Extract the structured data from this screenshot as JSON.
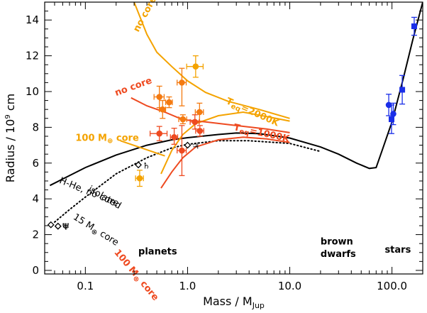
{
  "chart_data": {
    "type": "scatter",
    "xlabel": "Mass / M",
    "xlabel_sub": "Jup",
    "ylabel": "Radius / 10",
    "ylabel_sup": "9",
    "ylabel_suffix": " cm",
    "xscale": "log",
    "xlim": [
      0.04,
      200
    ],
    "ylim": [
      -0.2,
      15
    ],
    "x_ticks": [
      {
        "value": 0.1,
        "label": "0.1"
      },
      {
        "value": 1,
        "label": "1.0"
      },
      {
        "value": 10,
        "label": "10.0"
      },
      {
        "value": 100,
        "label": "100.0"
      }
    ],
    "y_ticks": [
      {
        "value": 0,
        "label": "0"
      },
      {
        "value": 2,
        "label": "2"
      },
      {
        "value": 4,
        "label": "4"
      },
      {
        "value": 6,
        "label": "6"
      },
      {
        "value": 8,
        "label": "8"
      },
      {
        "value": 10,
        "label": "10"
      },
      {
        "value": 12,
        "label": "12"
      },
      {
        "value": 14,
        "label": "14"
      }
    ],
    "colors": {
      "black": "#000000",
      "orange": "#f4a300",
      "red": "#ee4a20",
      "midorange": "#f47a10",
      "blue": "#1a2ee8"
    },
    "curves": [
      {
        "name": "hhe-no-core",
        "color": "#000000",
        "dash": false,
        "points": [
          [
            0.045,
            4.75
          ],
          [
            0.07,
            5.3
          ],
          [
            0.1,
            5.75
          ],
          [
            0.2,
            6.45
          ],
          [
            0.4,
            7.0
          ],
          [
            0.7,
            7.3
          ],
          [
            1.0,
            7.42
          ],
          [
            2.0,
            7.6
          ],
          [
            3.0,
            7.68
          ],
          [
            5.0,
            7.65
          ],
          [
            10.0,
            7.4
          ],
          [
            20.0,
            6.9
          ],
          [
            30.0,
            6.5
          ],
          [
            45.0,
            6.0
          ],
          [
            60.0,
            5.7
          ],
          [
            70.0,
            5.75
          ],
          [
            80.0,
            6.7
          ],
          [
            100.0,
            8.3
          ],
          [
            130.0,
            10.8
          ],
          [
            160.0,
            12.9
          ],
          [
            200.0,
            15.0
          ]
        ]
      },
      {
        "name": "isolated-15-core",
        "color": "#000000",
        "dash": true,
        "points": [
          [
            0.05,
            2.7
          ],
          [
            0.07,
            3.4
          ],
          [
            0.1,
            4.1
          ],
          [
            0.2,
            5.4
          ],
          [
            0.4,
            6.3
          ],
          [
            0.7,
            6.85
          ],
          [
            1.0,
            7.05
          ],
          [
            2.0,
            7.25
          ],
          [
            4.0,
            7.25
          ],
          [
            10.0,
            7.1
          ],
          [
            20.0,
            6.65
          ]
        ]
      },
      {
        "name": "no-core-2000K",
        "color": "#f4a300",
        "dash": false,
        "points": [
          [
            0.3,
            15.0
          ],
          [
            0.4,
            13.2
          ],
          [
            0.5,
            12.2
          ],
          [
            0.7,
            11.4
          ],
          [
            1.0,
            10.6
          ],
          [
            1.5,
            9.95
          ],
          [
            2.5,
            9.45
          ],
          [
            5.0,
            9.0
          ],
          [
            10.0,
            8.5
          ]
        ]
      },
      {
        "name": "100-core-2000K",
        "color": "#f4a300",
        "dash": false,
        "points": [
          [
            0.55,
            5.4
          ],
          [
            0.7,
            6.7
          ],
          [
            0.9,
            7.6
          ],
          [
            1.2,
            8.2
          ],
          [
            2.0,
            8.65
          ],
          [
            3.5,
            8.85
          ],
          [
            6.0,
            8.6
          ],
          [
            10.0,
            8.35
          ]
        ]
      },
      {
        "name": "100-core-label-line",
        "color": "#f4a300",
        "dash": false,
        "points": [
          [
            0.22,
            7.25
          ],
          [
            0.6,
            6.4
          ]
        ]
      },
      {
        "name": "no-core-1000K",
        "color": "#ee4a20",
        "dash": false,
        "points": [
          [
            0.28,
            9.65
          ],
          [
            0.4,
            9.2
          ],
          [
            0.6,
            8.85
          ],
          [
            0.8,
            8.55
          ],
          [
            1.0,
            8.4
          ],
          [
            1.5,
            8.3
          ],
          [
            3.0,
            8.1
          ],
          [
            6.0,
            7.9
          ],
          [
            10.0,
            7.7
          ]
        ]
      },
      {
        "name": "100-core-1000K",
        "color": "#ee4a20",
        "dash": false,
        "points": [
          [
            0.55,
            4.6
          ],
          [
            0.7,
            5.5
          ],
          [
            0.9,
            6.3
          ],
          [
            1.2,
            6.9
          ],
          [
            2.0,
            7.3
          ],
          [
            3.5,
            7.45
          ],
          [
            6.0,
            7.35
          ],
          [
            10.0,
            7.15
          ]
        ]
      }
    ],
    "orange_points": [
      {
        "x": 1.2,
        "y": 11.4,
        "xerr": [
          0.22,
          0.22
        ],
        "yerr": [
          0.6,
          0.6
        ],
        "color": "#f4a300"
      },
      {
        "x": 0.34,
        "y": 5.15,
        "xerr": [
          0.03,
          0.03
        ],
        "yerr": [
          0.45,
          0.45
        ],
        "color": "#f4a300"
      },
      {
        "x": 0.88,
        "y": 10.5,
        "xerr": [
          0.09,
          0.09
        ],
        "yerr": [
          1.3,
          0.8
        ],
        "color": "#f47a10"
      },
      {
        "x": 0.53,
        "y": 9.7,
        "xerr": [
          0.06,
          0.06
        ],
        "yerr": [
          0.6,
          0.6
        ],
        "color": "#f47a10"
      },
      {
        "x": 0.66,
        "y": 9.4,
        "xerr": [
          0.05,
          0.05
        ],
        "yerr": [
          0.3,
          0.3
        ],
        "color": "#f47a10"
      },
      {
        "x": 0.57,
        "y": 9.0,
        "xerr": [
          0.04,
          0.04
        ],
        "yerr": [
          0.5,
          0.5
        ],
        "color": "#f47a10"
      },
      {
        "x": 1.31,
        "y": 8.85,
        "xerr": [
          0.12,
          0.12
        ],
        "yerr": [
          0.5,
          0.5
        ],
        "color": "#f47a10"
      },
      {
        "x": 0.9,
        "y": 8.45,
        "xerr": [
          0.08,
          0.08
        ],
        "yerr": [
          0.25,
          0.25
        ],
        "color": "#f47a10"
      },
      {
        "x": 1.18,
        "y": 8.3,
        "xerr": [
          0.12,
          0.12
        ],
        "yerr": [
          0.4,
          0.4
        ],
        "color": "#ee4a20"
      },
      {
        "x": 0.53,
        "y": 7.65,
        "xerr": [
          0.1,
          0.1
        ],
        "yerr": [
          0.4,
          0.4
        ],
        "color": "#ee4a20"
      },
      {
        "x": 0.74,
        "y": 7.45,
        "xerr": [
          0.06,
          0.06
        ],
        "yerr": [
          0.4,
          0.5
        ],
        "color": "#ee4a20"
      },
      {
        "x": 1.32,
        "y": 7.8,
        "xerr": [
          0.12,
          0.12
        ],
        "yerr": [
          0.3,
          0.3
        ],
        "color": "#ee4a20"
      },
      {
        "x": 0.88,
        "y": 6.7,
        "xerr": [
          0.09,
          0.09
        ],
        "yerr": [
          1.4,
          1.4
        ],
        "color": "#ee4a20"
      }
    ],
    "blue_points": [
      {
        "x": 165,
        "y": 13.65,
        "xerr": [
          6,
          6
        ],
        "yerr": [
          0.5,
          0.5
        ],
        "marker": "square"
      },
      {
        "x": 126,
        "y": 10.1,
        "xerr": [
          3,
          3
        ],
        "yerr": [
          0.8,
          0.8
        ],
        "marker": "square"
      },
      {
        "x": 93,
        "y": 9.25,
        "xerr": [
          2,
          2
        ],
        "yerr": [
          0.6,
          0.6
        ],
        "marker": "circle"
      },
      {
        "x": 103,
        "y": 8.75,
        "xerr": [
          2,
          2
        ],
        "yerr": [
          0.6,
          0.6
        ],
        "marker": "circle"
      },
      {
        "x": 99,
        "y": 8.45,
        "xerr": [
          2,
          2
        ],
        "yerr": [
          0.8,
          0.8
        ],
        "marker": "square"
      }
    ],
    "solar_system": [
      {
        "x": 0.046,
        "y": 2.55,
        "symbol": ""
      },
      {
        "x": 0.054,
        "y": 2.47,
        "symbol": "♅"
      },
      {
        "x": 0.054,
        "y": 2.47,
        "symbol": "Ψ"
      },
      {
        "x": 0.33,
        "y": 5.9,
        "symbol": "♄"
      },
      {
        "x": 1.0,
        "y": 7.0,
        "symbol": "♃"
      }
    ],
    "curve_labels": [
      {
        "text": "no core",
        "x": 0.33,
        "y": 13.3,
        "color": "#f4a300",
        "rotate": 62,
        "bold": true
      },
      {
        "text": "no core",
        "x": 0.2,
        "y": 9.75,
        "color": "#ee4a20",
        "rotate": 20,
        "bold": true
      },
      {
        "text": "T",
        "sub": "eq",
        "suffix": "=2000K",
        "x": 2.35,
        "y": 9.35,
        "color": "#f4a300",
        "rotate": -24,
        "bold": true
      },
      {
        "text": "T",
        "sub": "eq",
        "suffix": "=1000K",
        "x": 2.8,
        "y": 7.85,
        "color": "#ee4a20",
        "rotate": -12,
        "bold": true
      },
      {
        "text": "100 M",
        "sub": "⊕",
        "suffix": " core",
        "x": 0.08,
        "y": 7.25,
        "color": "#f4a300",
        "rotate": 0,
        "bold": true
      },
      {
        "text": "100 M",
        "sub": "⊕",
        "suffix": " core",
        "x": 0.19,
        "y": 1.0,
        "color": "#ee4a20",
        "rotate": -50,
        "bold": true
      },
      {
        "text": "H-He, no core",
        "x": 0.055,
        "y": 4.9,
        "color": "#000000",
        "rotate": -22,
        "bold": false
      },
      {
        "text": "isolated",
        "x": 0.105,
        "y": 4.45,
        "color": "#000000",
        "rotate": -30,
        "bold": false
      },
      {
        "text": "15 M",
        "sub": "⊕",
        "suffix": " core",
        "x": 0.075,
        "y": 2.9,
        "color": "#000000",
        "rotate": -32,
        "bold": false
      }
    ],
    "regions": [
      {
        "text": "planets",
        "x": 0.33,
        "y": 0.9
      },
      {
        "text": "brown",
        "x": 20,
        "y": 1.45
      },
      {
        "text": "dwarfs",
        "x": 20,
        "y": 0.75
      },
      {
        "text": "stars",
        "x": 85,
        "y": 1.0
      }
    ]
  }
}
